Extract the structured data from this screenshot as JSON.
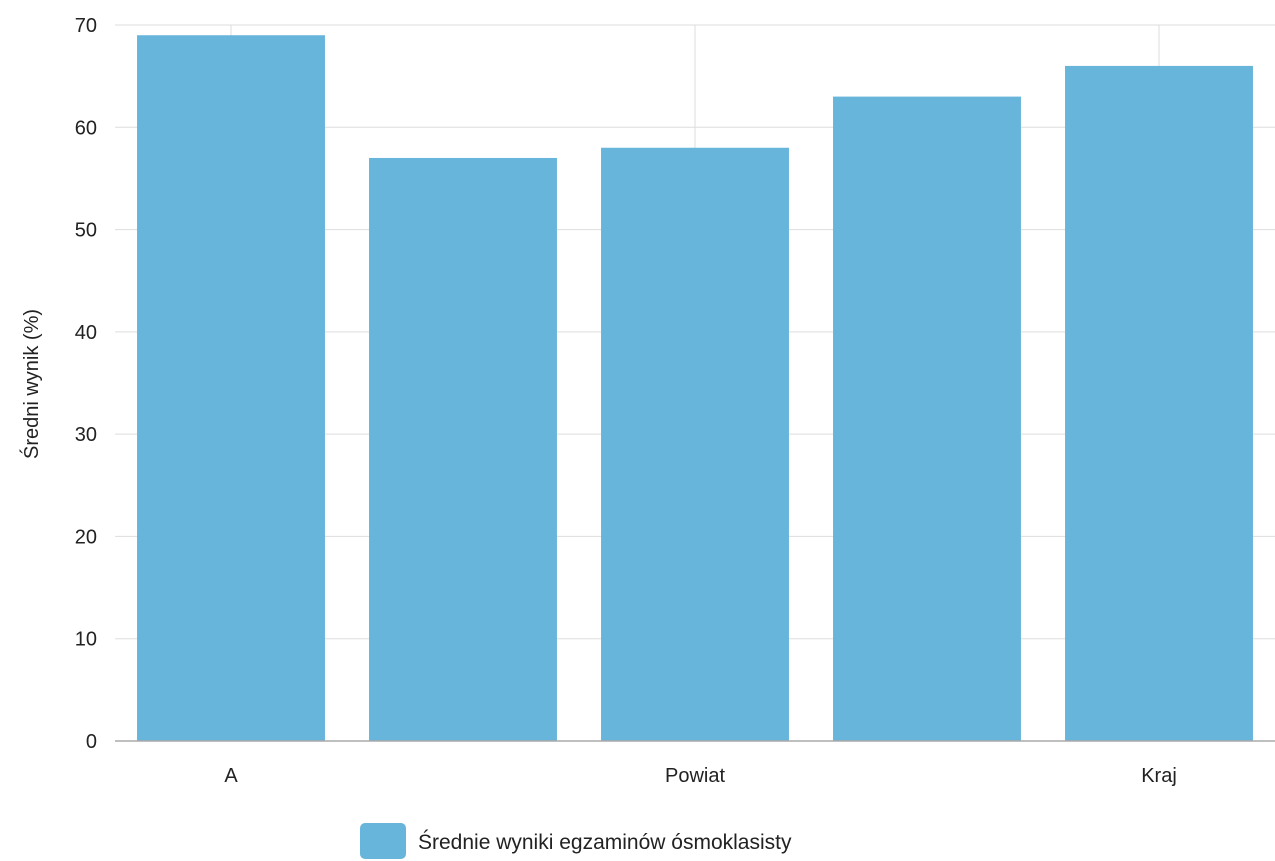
{
  "chart_data": {
    "type": "bar",
    "categories": [
      "A",
      "",
      "Powiat",
      "",
      "Kraj"
    ],
    "series": [
      {
        "name": "Średnie wyniki egzaminów ósmoklasisty",
        "values": [
          69,
          57,
          58,
          63,
          66
        ]
      }
    ],
    "ylabel": "Średni wynik (%)",
    "xlabel": "",
    "ylim": [
      0,
      70
    ],
    "yticks": [
      "0",
      "10",
      "20",
      "30",
      "40",
      "50",
      "60",
      "70"
    ],
    "grid": true,
    "legend_position": "bottom-center",
    "bar_color": "#67B5DB",
    "grid_color": "#DDDDDD",
    "axis_color": "#AAAAAA"
  }
}
